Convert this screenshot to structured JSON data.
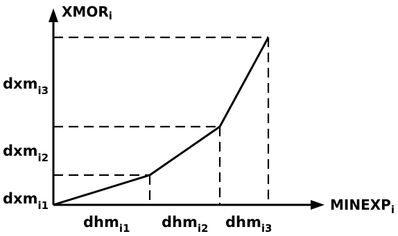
{
  "diagram": {
    "y_axis": {
      "main": "XMOR",
      "sub": "i"
    },
    "x_axis": {
      "main": "MINEXP",
      "sub": "i"
    },
    "y_labels": [
      {
        "main": "dxm",
        "sub": "i1"
      },
      {
        "main": "dxm",
        "sub": "i2"
      },
      {
        "main": "dxm",
        "sub": "i3"
      }
    ],
    "x_labels": [
      {
        "main": "dhm",
        "sub": "i1"
      },
      {
        "main": "dhm",
        "sub": "i2"
      },
      {
        "main": "dhm",
        "sub": "i3"
      }
    ],
    "colors": {
      "ink": "#000000",
      "background": "#ffffff"
    }
  }
}
